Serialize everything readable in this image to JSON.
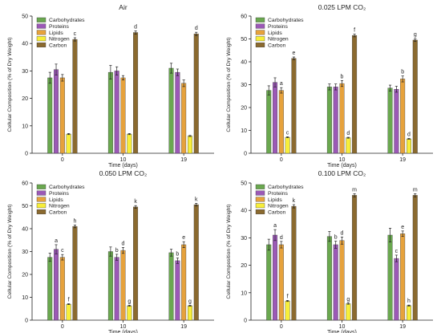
{
  "colors": {
    "Carbohydrates": "#6aa84f",
    "Proteins": "#9b59b6",
    "Lipids": "#e6a23c",
    "Nitrogen": "#f7ee3a",
    "Carbon": "#8b6a2f",
    "axis": "#222222",
    "errorbar": "#222222"
  },
  "chart_data": [
    {
      "type": "bar",
      "title": "Air",
      "xlabel": "Time (days)",
      "ylabel": "Cellular Composition (% of Dry Weight)",
      "categories": [
        "0",
        "10",
        "19"
      ],
      "ylim": [
        0,
        50
      ],
      "yticks": [
        0,
        10,
        20,
        30,
        40,
        50
      ],
      "legend_position": "top-left",
      "series": [
        {
          "name": "Carbohydrates",
          "values": [
            27.5,
            29.5,
            31
          ],
          "errors": [
            2,
            2.5,
            1.8
          ],
          "labels": [
            "",
            "",
            ""
          ]
        },
        {
          "name": "Proteins",
          "values": [
            30.5,
            30,
            29.5
          ],
          "errors": [
            2,
            1.5,
            1.2
          ],
          "labels": [
            "",
            "",
            ""
          ]
        },
        {
          "name": "Lipids",
          "values": [
            27.5,
            27.5,
            25.5
          ],
          "errors": [
            1.2,
            0.8,
            1.2
          ],
          "labels": [
            "",
            "",
            ""
          ]
        },
        {
          "name": "Nitrogen",
          "values": [
            7,
            7,
            6.3
          ],
          "errors": [
            0.2,
            0.2,
            0.2
          ],
          "labels": [
            "",
            "",
            ""
          ]
        },
        {
          "name": "Carbon",
          "values": [
            41.5,
            44,
            43.5
          ],
          "errors": [
            0.6,
            0.6,
            0.6
          ],
          "labels": [
            "c",
            "d",
            "d"
          ]
        }
      ]
    },
    {
      "type": "bar",
      "title": "0.025 LPM CO₂",
      "xlabel": "Time (days)",
      "ylabel": "Cellular Composition (% of Dry Weight)",
      "categories": [
        "0",
        "10",
        "19"
      ],
      "ylim": [
        0,
        60
      ],
      "yticks": [
        0,
        10,
        20,
        30,
        40,
        50,
        60
      ],
      "legend_position": "top-left",
      "series": [
        {
          "name": "Carbohydrates",
          "values": [
            27.5,
            29,
            28.5
          ],
          "errors": [
            2,
            1.3,
            1.3
          ],
          "labels": [
            "",
            "",
            ""
          ]
        },
        {
          "name": "Proteins",
          "values": [
            31,
            29,
            28
          ],
          "errors": [
            2,
            1.3,
            1.3
          ],
          "labels": [
            "",
            "",
            ""
          ]
        },
        {
          "name": "Lipids",
          "values": [
            27.5,
            30.5,
            32.5
          ],
          "errors": [
            1.2,
            1.3,
            1.3
          ],
          "labels": [
            "a",
            "b",
            "b"
          ]
        },
        {
          "name": "Nitrogen",
          "values": [
            7,
            6.8,
            6.3
          ],
          "errors": [
            0.2,
            0.2,
            0.2
          ],
          "labels": [
            "c",
            "d",
            "d"
          ]
        },
        {
          "name": "Carbon",
          "values": [
            41.5,
            51.5,
            49.5
          ],
          "errors": [
            0.6,
            0.6,
            0.6
          ],
          "labels": [
            "e",
            "f",
            "g"
          ]
        }
      ]
    },
    {
      "type": "bar",
      "title": "0.050 LPM CO₂",
      "xlabel": "Time (days)",
      "ylabel": "Cellular Composition (% of Dry Weight)",
      "categories": [
        "0",
        "10",
        "19"
      ],
      "ylim": [
        0,
        60
      ],
      "yticks": [
        0,
        10,
        20,
        30,
        40,
        50,
        60
      ],
      "legend_position": "top-left",
      "series": [
        {
          "name": "Carbohydrates",
          "values": [
            27.5,
            30,
            29.5
          ],
          "errors": [
            1.8,
            2,
            1.5
          ],
          "labels": [
            "",
            "",
            ""
          ]
        },
        {
          "name": "Proteins",
          "values": [
            31,
            27.5,
            26
          ],
          "errors": [
            2,
            1.3,
            1.2
          ],
          "labels": [
            "a",
            "b",
            "b"
          ]
        },
        {
          "name": "Lipids",
          "values": [
            27.5,
            30.5,
            33
          ],
          "errors": [
            1.2,
            1.3,
            1.3
          ],
          "labels": [
            "c",
            "d",
            "e"
          ]
        },
        {
          "name": "Nitrogen",
          "values": [
            7,
            6.3,
            6.3
          ],
          "errors": [
            0.2,
            0.2,
            0.2
          ],
          "labels": [
            "f",
            "g",
            "g"
          ]
        },
        {
          "name": "Carbon",
          "values": [
            41,
            49.5,
            50.5
          ],
          "errors": [
            0.6,
            0.6,
            0.6
          ],
          "labels": [
            "h",
            "k",
            "k"
          ]
        }
      ]
    },
    {
      "type": "bar",
      "title": "0.100 LPM CO₂",
      "xlabel": "Time (days)",
      "ylabel": "Cellular Composition (% of Dry Weight)",
      "categories": [
        "0",
        "10",
        "19"
      ],
      "ylim": [
        0,
        50
      ],
      "yticks": [
        0,
        10,
        20,
        30,
        40,
        50
      ],
      "legend_position": "top-left",
      "series": [
        {
          "name": "Carbohydrates",
          "values": [
            27.5,
            30.5,
            31
          ],
          "errors": [
            2,
            1.8,
            2.5
          ],
          "labels": [
            "",
            "",
            ""
          ]
        },
        {
          "name": "Proteins",
          "values": [
            31,
            27.5,
            22.5
          ],
          "errors": [
            2,
            1.3,
            1.2
          ],
          "labels": [
            "a",
            "b",
            "c"
          ]
        },
        {
          "name": "Lipids",
          "values": [
            27.5,
            29,
            31.5
          ],
          "errors": [
            1.2,
            1.3,
            1
          ],
          "labels": [
            "d",
            "d",
            "e"
          ]
        },
        {
          "name": "Nitrogen",
          "values": [
            7,
            6,
            5.3
          ],
          "errors": [
            0.2,
            0.2,
            0.2
          ],
          "labels": [
            "f",
            "g",
            "h"
          ]
        },
        {
          "name": "Carbon",
          "values": [
            41.5,
            45.5,
            45.5
          ],
          "errors": [
            0.6,
            0.6,
            0.6
          ],
          "labels": [
            "k",
            "m",
            "m"
          ]
        }
      ]
    }
  ]
}
